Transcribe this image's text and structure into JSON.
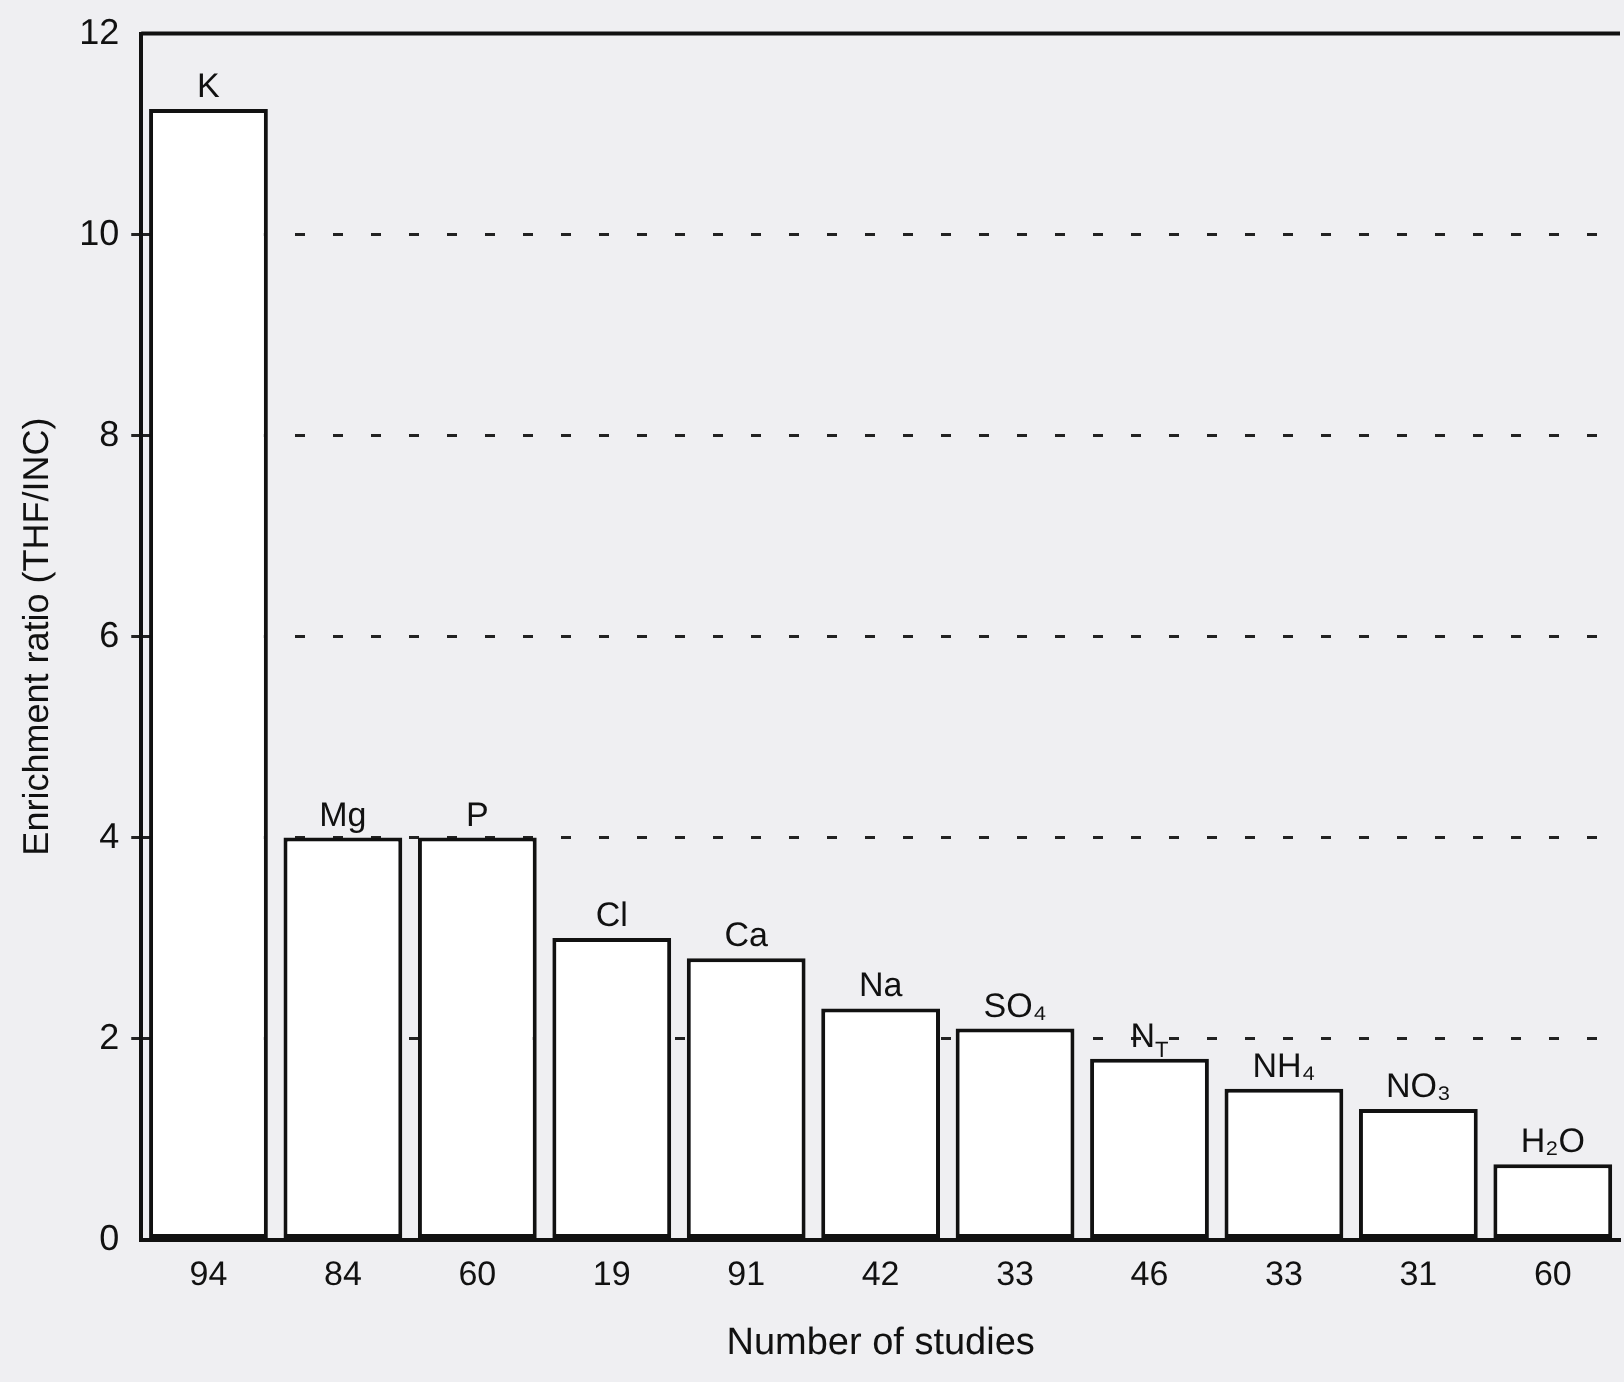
{
  "chart_data": {
    "type": "bar",
    "xlabel": "Number of studies",
    "ylabel": "Enrichment ratio (THF/INC)",
    "categories": [
      "94",
      "84",
      "60",
      "19",
      "91",
      "42",
      "33",
      "46",
      "33",
      "31",
      "60"
    ],
    "values": [
      11.25,
      4.0,
      4.0,
      3.0,
      2.8,
      2.3,
      2.1,
      1.8,
      1.5,
      1.3,
      0.75
    ],
    "value_labels": [
      "K",
      "Mg",
      "P",
      "Cl",
      "Ca",
      "Na",
      "SO₄",
      "N$_{T}$",
      "NH₄",
      "NO₃",
      "H₂O"
    ],
    "color": "#ffffff",
    "ylim": [
      0,
      12
    ],
    "yticks": [
      0,
      2,
      4,
      6,
      8,
      10,
      12
    ],
    "grid": "y",
    "legend": false
  }
}
